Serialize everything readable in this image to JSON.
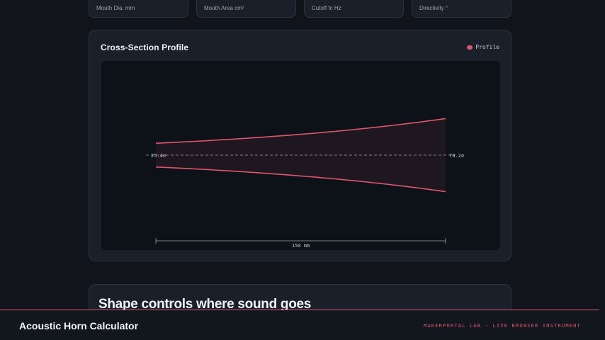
{
  "stats": [
    {
      "label": "Mouth Dia. mm"
    },
    {
      "label": "Mouth Area cm²"
    },
    {
      "label": "Cutoff fc Hz"
    },
    {
      "label": "Directivity °"
    }
  ],
  "profile_panel": {
    "title": "Cross-Section Profile",
    "legend_label": "Profile",
    "profile_color": "#e0546e",
    "throat_label": "25.4⌀",
    "mouth_label": "78.2⌀",
    "length_label": "150 mm"
  },
  "chart_data": {
    "type": "area",
    "title": "Cross-Section Profile",
    "series": [
      {
        "name": "Profile"
      }
    ],
    "throat_diameter_mm": 25.4,
    "mouth_diameter_mm": 78.2,
    "length_mm": 150,
    "axis_position_mm": [
      0,
      150
    ],
    "legend": "top-right",
    "grid": false
  },
  "section": {
    "title": "Shape controls where sound goes"
  },
  "footer": {
    "title": "Acoustic Horn Calculator",
    "tagline": "MAKERPORTAL LAB · LIVE BROWSER INSTRUMENT"
  }
}
